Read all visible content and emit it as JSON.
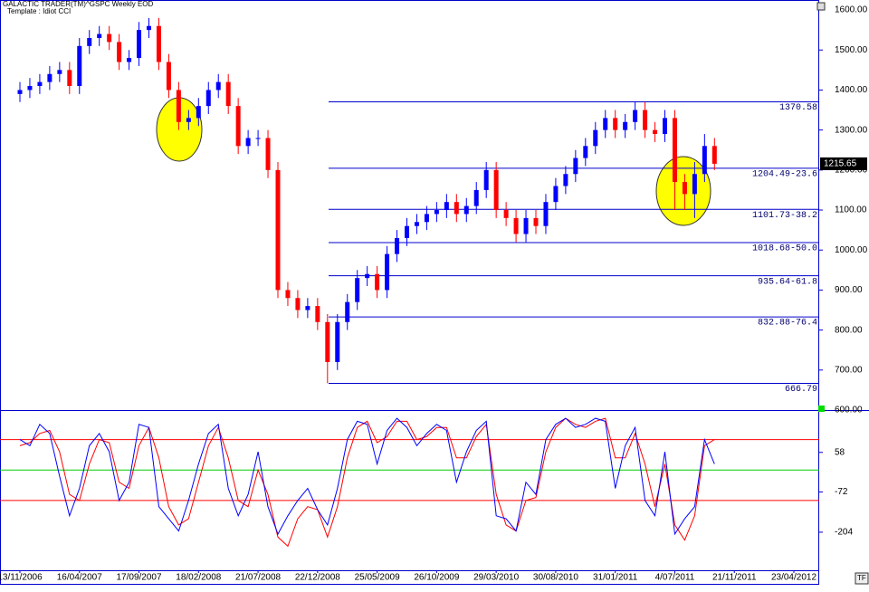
{
  "header": {
    "app": "GALACTIC TRADER(TM)",
    "symbol": "^GSPC Weekly EOD",
    "template": "Template : Idiot CCI",
    "corner_left": "TF"
  },
  "chart_data": [
    {
      "type": "candlestick",
      "up_color": "#0000ff",
      "down_color": "#ff0000",
      "categories": [
        "13/11/2006",
        null,
        null,
        null,
        null,
        null,
        "16/04/2007",
        null,
        null,
        null,
        null,
        null,
        "17/09/2007",
        null,
        null,
        null,
        null,
        null,
        "18/02/2008",
        null,
        null,
        null,
        null,
        null,
        "21/07/2008",
        null,
        null,
        null,
        null,
        null,
        "22/12/2008",
        null,
        null,
        null,
        null,
        null,
        "25/05/2009",
        null,
        null,
        null,
        null,
        null,
        "26/10/2009",
        null,
        null,
        null,
        null,
        null,
        "29/03/2010",
        null,
        null,
        null,
        null,
        null,
        "30/08/2010",
        null,
        null,
        null,
        null,
        null,
        "31/01/2011",
        null,
        null,
        null,
        null,
        null,
        "4/07/2011",
        null,
        null,
        null,
        null,
        null,
        "21/11/2011",
        null,
        null,
        null,
        null,
        null,
        "23/04/2012"
      ],
      "open": [
        1390,
        1400,
        1410,
        1420,
        1440,
        1450,
        1410,
        1510,
        1530,
        1540,
        1520,
        1470,
        1480,
        1550,
        1560,
        1470,
        1400,
        1320,
        1330,
        1360,
        1400,
        1420,
        1360,
        1260,
        1280,
        1280,
        1200,
        900,
        880,
        850,
        860,
        820,
        720,
        820,
        870,
        930,
        940,
        900,
        990,
        1030,
        1060,
        1070,
        1090,
        1100,
        1120,
        1090,
        1110,
        1150,
        1200,
        1100,
        1080,
        1040,
        1080,
        1060,
        1120,
        1160,
        1190,
        1230,
        1260,
        1300,
        1330,
        1300,
        1320,
        1350,
        1300,
        1290,
        1330,
        1170,
        1140,
        1190,
        1260,
        null,
        null,
        null,
        null,
        null,
        null,
        null,
        null
      ],
      "high": [
        1420,
        1430,
        1440,
        1460,
        1470,
        1470,
        1530,
        1550,
        1560,
        1560,
        1540,
        1500,
        1570,
        1580,
        1580,
        1490,
        1420,
        1350,
        1380,
        1420,
        1440,
        1440,
        1380,
        1300,
        1300,
        1300,
        1220,
        920,
        900,
        880,
        880,
        840,
        840,
        890,
        950,
        960,
        960,
        1010,
        1050,
        1080,
        1090,
        1110,
        1120,
        1140,
        1140,
        1130,
        1170,
        1220,
        1220,
        1120,
        1100,
        1100,
        1100,
        1140,
        1180,
        1210,
        1250,
        1280,
        1320,
        1350,
        1350,
        1340,
        1370,
        1370,
        1320,
        1350,
        1350,
        1190,
        1220,
        1290,
        1280,
        null,
        null,
        null,
        null,
        null,
        null,
        null,
        null
      ],
      "low": [
        1370,
        1380,
        1390,
        1400,
        1420,
        1390,
        1390,
        1490,
        1510,
        1500,
        1450,
        1450,
        1460,
        1530,
        1450,
        1380,
        1300,
        1300,
        1310,
        1340,
        1380,
        1340,
        1240,
        1240,
        1260,
        1180,
        880,
        860,
        830,
        830,
        800,
        667,
        700,
        800,
        850,
        910,
        880,
        880,
        970,
        1010,
        1040,
        1050,
        1070,
        1080,
        1070,
        1070,
        1090,
        1130,
        1080,
        1060,
        1020,
        1020,
        1040,
        1040,
        1100,
        1140,
        1170,
        1210,
        1240,
        1280,
        1280,
        1280,
        1300,
        1280,
        1270,
        1270,
        1100,
        1100,
        1080,
        1170,
        1200,
        null,
        null,
        null,
        null,
        null,
        null,
        null,
        null
      ],
      "close": [
        1400,
        1410,
        1420,
        1440,
        1450,
        1410,
        1510,
        1530,
        1540,
        1520,
        1470,
        1480,
        1550,
        1560,
        1470,
        1400,
        1320,
        1330,
        1360,
        1400,
        1420,
        1360,
        1260,
        1280,
        1280,
        1200,
        900,
        880,
        850,
        860,
        820,
        720,
        820,
        870,
        930,
        940,
        900,
        990,
        1030,
        1060,
        1070,
        1090,
        1100,
        1120,
        1090,
        1110,
        1150,
        1200,
        1100,
        1080,
        1040,
        1080,
        1060,
        1120,
        1160,
        1190,
        1230,
        1260,
        1300,
        1330,
        1300,
        1320,
        1350,
        1300,
        1290,
        1330,
        1170,
        1140,
        1190,
        1260,
        1215.65,
        null,
        null,
        null,
        null,
        null,
        null,
        null,
        null
      ],
      "last_price": 1215.65,
      "ylim": [
        600,
        1625
      ],
      "yticks": [
        {
          "value": 600,
          "label": "600.00"
        },
        {
          "value": 700,
          "label": "700.00"
        },
        {
          "value": 800,
          "label": "800.00"
        },
        {
          "value": 900,
          "label": "900.00"
        },
        {
          "value": 1000,
          "label": "1000.00"
        },
        {
          "value": 1100,
          "label": "1100.00"
        },
        {
          "value": 1200,
          "label": "1200.00"
        },
        {
          "value": 1300,
          "label": "1300.00"
        },
        {
          "value": 1400,
          "label": "1400.00"
        },
        {
          "value": 1500,
          "label": "1500.00"
        },
        {
          "value": 1600,
          "label": "1600.00"
        }
      ],
      "levels": [
        {
          "value": 1370.58,
          "label": "1370.58"
        },
        {
          "value": 1204.49,
          "label": "1204.49-23.6"
        },
        {
          "value": 1101.73,
          "label": "1101.73-38.2"
        },
        {
          "value": 1018.68,
          "label": "1018.68-50.0"
        },
        {
          "value": 935.64,
          "label": "935.64-61.8"
        },
        {
          "value": 832.88,
          "label": "832.88-76.4"
        },
        {
          "value": 666.79,
          "label": "666.79"
        }
      ],
      "level_color": "#0000cc"
    },
    {
      "type": "line",
      "series": [
        {
          "color": "#0000ff",
          "values": [
            100,
            80,
            150,
            120,
            -20,
            -150,
            -60,
            80,
            120,
            60,
            -100,
            -40,
            150,
            140,
            -120,
            -160,
            -200,
            -100,
            20,
            120,
            150,
            -60,
            -150,
            -80,
            60,
            -120,
            -210,
            -150,
            -100,
            -60,
            -130,
            -180,
            -60,
            100,
            160,
            150,
            20,
            130,
            170,
            140,
            80,
            120,
            150,
            130,
            -40,
            60,
            130,
            160,
            -150,
            -160,
            -200,
            -40,
            -80,
            100,
            150,
            170,
            140,
            150,
            170,
            160,
            -60,
            80,
            140,
            -100,
            -150,
            60,
            -210,
            -160,
            -120,
            100,
            20,
            null,
            null,
            null,
            null,
            null,
            null,
            null,
            null
          ]
        },
        {
          "color": "#ff0000",
          "values": [
            80,
            90,
            120,
            130,
            60,
            -80,
            -100,
            20,
            100,
            90,
            -40,
            -60,
            80,
            140,
            40,
            -120,
            -180,
            -160,
            -40,
            80,
            140,
            40,
            -100,
            -120,
            0,
            -80,
            -220,
            -250,
            -160,
            -120,
            -130,
            -220,
            -120,
            40,
            140,
            160,
            90,
            110,
            160,
            160,
            100,
            110,
            140,
            140,
            40,
            40,
            110,
            150,
            -80,
            -180,
            -200,
            -100,
            -90,
            60,
            140,
            170,
            150,
            140,
            160,
            170,
            40,
            40,
            120,
            20,
            -120,
            20,
            -180,
            -230,
            -150,
            80,
            100,
            null,
            null,
            null,
            null,
            null,
            null,
            null,
            null
          ]
        }
      ],
      "hlines": [
        {
          "value": 100,
          "color": "#ff0000"
        },
        {
          "value": 0,
          "color": "#00cc00"
        },
        {
          "value": -100,
          "color": "#ff0000"
        }
      ],
      "ylim": [
        -329,
        194
      ],
      "yticks": [
        58,
        -72,
        -204
      ]
    }
  ]
}
